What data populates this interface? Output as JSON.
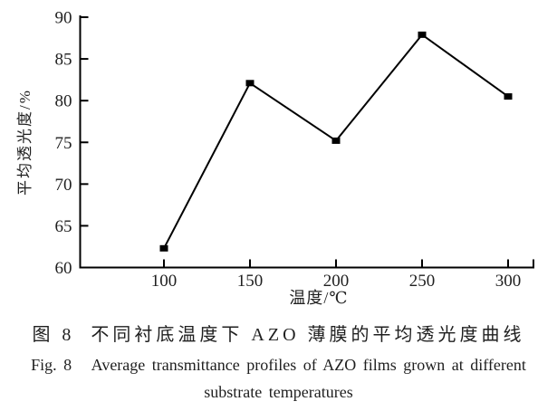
{
  "chart_data": {
    "type": "line",
    "series": [
      {
        "name": "average-transmittance",
        "x": [
          100,
          150,
          200,
          250,
          300
        ],
        "y": [
          62.3,
          82.1,
          75.2,
          87.9,
          80.5
        ],
        "marker": "filled-square",
        "color": "#000000"
      }
    ],
    "xlabel": "温度/℃",
    "ylabel": "平均透光度/%",
    "xticks": [
      100,
      150,
      200,
      250,
      300
    ],
    "yticks": [
      60,
      65,
      70,
      75,
      80,
      85,
      90
    ],
    "xlim": [
      51,
      316
    ],
    "ylim": [
      60,
      90
    ],
    "grid": false,
    "legend": "none",
    "axis_color": "#000000"
  },
  "caption": {
    "zh": "图 8  不同衬底温度下 AZO 薄膜的平均透光度曲线",
    "en_line1": "Fig. 8   Average transmittance profiles of AZO films grown at different",
    "en_line2": "substrate temperatures"
  }
}
